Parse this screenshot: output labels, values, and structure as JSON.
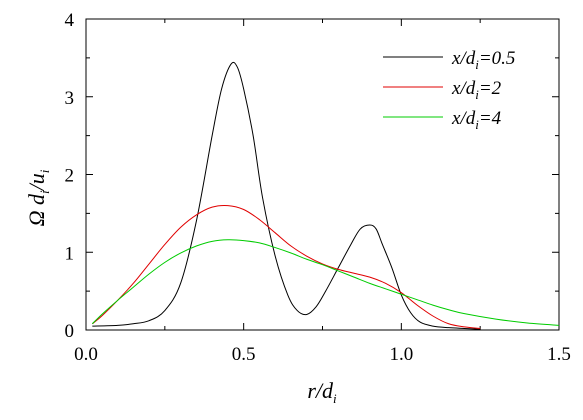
{
  "chart_data": {
    "type": "line",
    "xlim": [
      0.0,
      1.5
    ],
    "ylim": [
      0,
      4
    ],
    "xticks": [
      "0.0",
      "0.5",
      "1.0",
      "1.5"
    ],
    "yticks": [
      "0",
      "1",
      "2",
      "3",
      "4"
    ],
    "xlabel": {
      "main": "r/d",
      "sub": "i"
    },
    "ylabel": {
      "p1": "Ω d",
      "s1": "i",
      "p2": "/u",
      "s2": "i"
    },
    "grid": false,
    "legend_position": "top-right",
    "series": [
      {
        "name": {
          "pre": "x/d",
          "sub": "i",
          "post": "=0.5"
        },
        "color": "#000000",
        "x": [
          0.02,
          0.1,
          0.15,
          0.2,
          0.25,
          0.3,
          0.35,
          0.4,
          0.43,
          0.46,
          0.48,
          0.5,
          0.53,
          0.56,
          0.6,
          0.64,
          0.67,
          0.7,
          0.73,
          0.76,
          0.8,
          0.84,
          0.87,
          0.9,
          0.92,
          0.94,
          0.97,
          1.0,
          1.03,
          1.06,
          1.1,
          1.15,
          1.2,
          1.25
        ],
        "y": [
          0.05,
          0.06,
          0.08,
          0.12,
          0.25,
          0.6,
          1.4,
          2.5,
          3.1,
          3.42,
          3.38,
          3.1,
          2.5,
          1.7,
          0.95,
          0.45,
          0.25,
          0.2,
          0.3,
          0.5,
          0.8,
          1.1,
          1.3,
          1.35,
          1.3,
          1.1,
          0.8,
          0.45,
          0.22,
          0.1,
          0.05,
          0.03,
          0.02,
          0.01
        ]
      },
      {
        "name": {
          "pre": "x/d",
          "sub": "i",
          "post": "=2"
        },
        "color": "#e00000",
        "x": [
          0.02,
          0.05,
          0.1,
          0.15,
          0.2,
          0.25,
          0.3,
          0.35,
          0.4,
          0.45,
          0.5,
          0.55,
          0.6,
          0.65,
          0.7,
          0.75,
          0.8,
          0.85,
          0.9,
          0.95,
          1.0,
          1.05,
          1.1,
          1.15,
          1.2,
          1.25
        ],
        "y": [
          0.08,
          0.18,
          0.38,
          0.6,
          0.85,
          1.1,
          1.32,
          1.48,
          1.58,
          1.6,
          1.55,
          1.42,
          1.25,
          1.08,
          0.95,
          0.85,
          0.78,
          0.73,
          0.68,
          0.6,
          0.48,
          0.32,
          0.18,
          0.08,
          0.04,
          0.02
        ]
      },
      {
        "name": {
          "pre": "x/d",
          "sub": "i",
          "post": "=4"
        },
        "color": "#00cc00",
        "x": [
          0.02,
          0.05,
          0.1,
          0.15,
          0.2,
          0.25,
          0.3,
          0.35,
          0.4,
          0.45,
          0.5,
          0.55,
          0.6,
          0.65,
          0.7,
          0.75,
          0.8,
          0.85,
          0.9,
          0.95,
          1.0,
          1.05,
          1.1,
          1.15,
          1.2,
          1.3,
          1.4,
          1.5
        ],
        "y": [
          0.08,
          0.2,
          0.38,
          0.55,
          0.72,
          0.87,
          0.99,
          1.08,
          1.14,
          1.16,
          1.15,
          1.12,
          1.06,
          0.99,
          0.91,
          0.84,
          0.76,
          0.68,
          0.6,
          0.53,
          0.46,
          0.39,
          0.32,
          0.26,
          0.21,
          0.14,
          0.09,
          0.06
        ]
      }
    ]
  }
}
